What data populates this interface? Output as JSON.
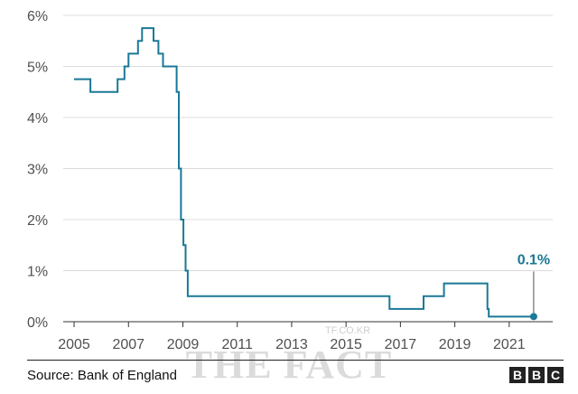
{
  "chart_data": {
    "type": "line",
    "step": true,
    "series": [
      {
        "values": [
          [
            2005.0,
            4.75
          ],
          [
            2005.6,
            4.75
          ],
          [
            2005.6,
            4.5
          ],
          [
            2006.6,
            4.5
          ],
          [
            2006.6,
            4.75
          ],
          [
            2006.85,
            4.75
          ],
          [
            2006.85,
            5.0
          ],
          [
            2007.0,
            5.0
          ],
          [
            2007.0,
            5.25
          ],
          [
            2007.35,
            5.25
          ],
          [
            2007.35,
            5.5
          ],
          [
            2007.5,
            5.5
          ],
          [
            2007.5,
            5.75
          ],
          [
            2007.92,
            5.75
          ],
          [
            2007.92,
            5.5
          ],
          [
            2008.1,
            5.5
          ],
          [
            2008.1,
            5.25
          ],
          [
            2008.27,
            5.25
          ],
          [
            2008.27,
            5.0
          ],
          [
            2008.77,
            5.0
          ],
          [
            2008.77,
            4.5
          ],
          [
            2008.85,
            4.5
          ],
          [
            2008.85,
            3.0
          ],
          [
            2008.93,
            3.0
          ],
          [
            2008.93,
            2.0
          ],
          [
            2009.02,
            2.0
          ],
          [
            2009.02,
            1.5
          ],
          [
            2009.1,
            1.5
          ],
          [
            2009.1,
            1.0
          ],
          [
            2009.18,
            1.0
          ],
          [
            2009.18,
            0.5
          ],
          [
            2016.6,
            0.5
          ],
          [
            2016.6,
            0.25
          ],
          [
            2017.85,
            0.25
          ],
          [
            2017.85,
            0.5
          ],
          [
            2018.6,
            0.5
          ],
          [
            2018.6,
            0.75
          ],
          [
            2020.2,
            0.75
          ],
          [
            2020.2,
            0.25
          ],
          [
            2020.25,
            0.25
          ],
          [
            2020.25,
            0.1
          ],
          [
            2021.9,
            0.1
          ]
        ]
      }
    ],
    "xticks": [
      "2005",
      "2007",
      "2009",
      "2011",
      "2013",
      "2015",
      "2017",
      "2019",
      "2021"
    ],
    "yticks": [
      "0%",
      "1%",
      "2%",
      "3%",
      "4%",
      "5%",
      "6%"
    ],
    "xlim": [
      2004.6,
      2022.6
    ],
    "ylim": [
      0,
      6
    ],
    "grid": true,
    "line_color": "#1b7896",
    "annotation": {
      "label": "0.1%",
      "x": 2021.9,
      "y": 0.1
    }
  },
  "footer": {
    "source": "Source: Bank of England",
    "logo": [
      "B",
      "B",
      "C"
    ]
  },
  "watermark": {
    "main": "THE FACT",
    "small": "TF.CO.KR"
  }
}
